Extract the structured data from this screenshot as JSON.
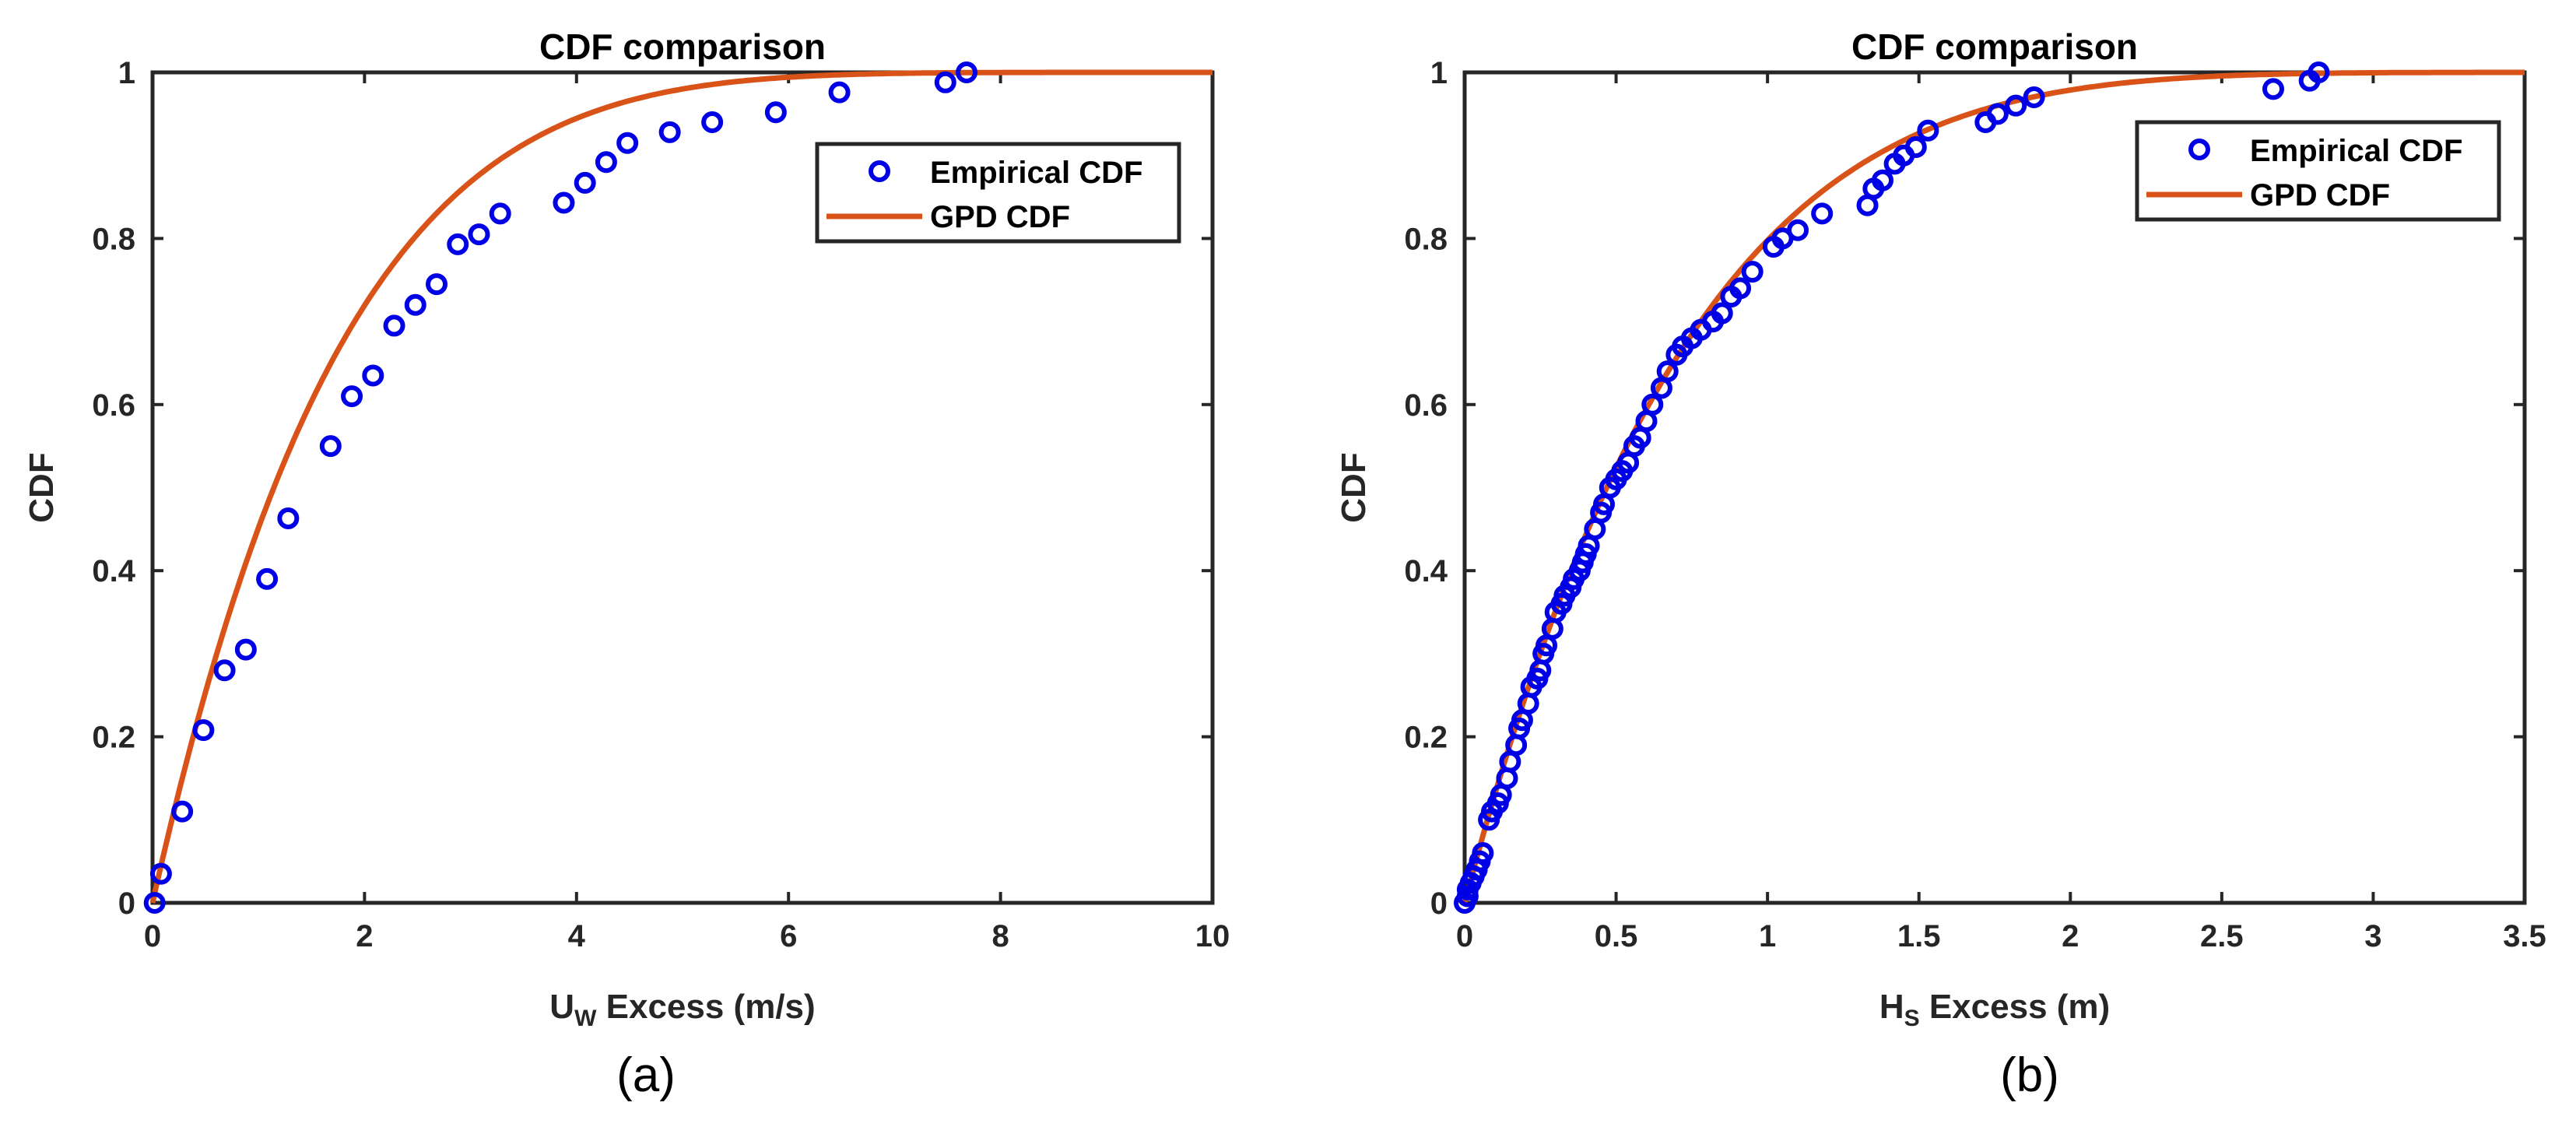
{
  "colors": {
    "empirical": "#0000e6",
    "gpd": "#d95319",
    "axis": "#262626"
  },
  "chart_data": [
    {
      "type": "line",
      "title": "CDF comparison",
      "xlabel_main": "U",
      "xlabel_sub": "W",
      "xlabel_rest": " Excess (m/s)",
      "ylabel": "CDF",
      "caption": "(a)",
      "xlim": [
        0,
        10
      ],
      "ylim": [
        0,
        1
      ],
      "xticks": [
        0,
        2,
        4,
        6,
        8,
        10
      ],
      "xtick_labels": [
        "0",
        "2",
        "4",
        "6",
        "8",
        "10"
      ],
      "yticks": [
        0,
        0.2,
        0.4,
        0.6,
        0.8,
        1
      ],
      "ytick_labels": [
        "0",
        "0.2",
        "0.4",
        "0.6",
        "0.8",
        "1"
      ],
      "legend": [
        "Empirical CDF",
        "GPD CDF"
      ],
      "legend_position": "top-right",
      "gpd": {
        "shape": -0.17,
        "scale": 1.75
      },
      "series": [
        {
          "name": "Empirical CDF",
          "style": "markers",
          "x": [
            0.02,
            0.08,
            0.28,
            0.48,
            0.68,
            0.88,
            1.08,
            1.28,
            1.68,
            1.88,
            2.08,
            2.28,
            2.48,
            2.68,
            2.88,
            3.08,
            3.28,
            3.88,
            4.08,
            4.28,
            4.48,
            4.88,
            5.28,
            5.88,
            6.48,
            7.48,
            7.68
          ],
          "y": [
            0.0,
            0.035,
            0.11,
            0.208,
            0.28,
            0.305,
            0.39,
            0.463,
            0.55,
            0.61,
            0.635,
            0.695,
            0.72,
            0.745,
            0.793,
            0.805,
            0.83,
            0.843,
            0.867,
            0.892,
            0.915,
            0.928,
            0.94,
            0.952,
            0.976,
            0.988,
            1.0
          ]
        },
        {
          "name": "GPD CDF",
          "style": "line",
          "x_range": [
            0,
            10
          ]
        }
      ]
    },
    {
      "type": "line",
      "title": "CDF comparison",
      "xlabel_main": "H",
      "xlabel_sub": "S",
      "xlabel_rest": " Excess (m)",
      "ylabel": "CDF",
      "caption": "(b)",
      "xlim": [
        0,
        3.5
      ],
      "ylim": [
        0,
        1
      ],
      "xticks": [
        0,
        0.5,
        1,
        1.5,
        2,
        2.5,
        3,
        3.5
      ],
      "xtick_labels": [
        "0",
        "0.5",
        "1",
        "1.5",
        "2",
        "2.5",
        "3",
        "3.5"
      ],
      "yticks": [
        0,
        0.2,
        0.4,
        0.6,
        0.8,
        1
      ],
      "ytick_labels": [
        "0",
        "0.2",
        "0.4",
        "0.6",
        "0.8",
        "1"
      ],
      "legend": [
        "Empirical CDF",
        "GPD CDF"
      ],
      "legend_position": "top-right",
      "gpd": {
        "shape": -0.18,
        "scale": 0.72
      },
      "series": [
        {
          "name": "Empirical CDF",
          "style": "markers",
          "x": [
            0.0,
            0.01,
            0.01,
            0.02,
            0.03,
            0.04,
            0.05,
            0.06,
            0.08,
            0.09,
            0.11,
            0.12,
            0.14,
            0.15,
            0.17,
            0.18,
            0.19,
            0.21,
            0.22,
            0.24,
            0.25,
            0.26,
            0.27,
            0.29,
            0.3,
            0.32,
            0.33,
            0.35,
            0.36,
            0.38,
            0.39,
            0.4,
            0.41,
            0.43,
            0.45,
            0.46,
            0.48,
            0.5,
            0.52,
            0.54,
            0.56,
            0.58,
            0.6,
            0.62,
            0.65,
            0.67,
            0.7,
            0.72,
            0.75,
            0.78,
            0.82,
            0.85,
            0.88,
            0.91,
            0.95,
            1.02,
            1.05,
            1.1,
            1.18,
            1.33,
            1.35,
            1.38,
            1.42,
            1.45,
            1.49,
            1.53,
            1.72,
            1.76,
            1.82,
            1.88,
            2.67,
            2.79,
            2.82
          ],
          "y": [
            0.0,
            0.008,
            0.016,
            0.024,
            0.032,
            0.04,
            0.05,
            0.06,
            0.1,
            0.11,
            0.12,
            0.13,
            0.15,
            0.17,
            0.19,
            0.21,
            0.22,
            0.24,
            0.26,
            0.27,
            0.28,
            0.3,
            0.31,
            0.33,
            0.35,
            0.36,
            0.37,
            0.38,
            0.39,
            0.4,
            0.41,
            0.42,
            0.43,
            0.45,
            0.47,
            0.48,
            0.5,
            0.51,
            0.52,
            0.53,
            0.55,
            0.56,
            0.58,
            0.6,
            0.62,
            0.64,
            0.66,
            0.67,
            0.68,
            0.69,
            0.7,
            0.71,
            0.73,
            0.74,
            0.76,
            0.79,
            0.8,
            0.81,
            0.83,
            0.84,
            0.86,
            0.87,
            0.89,
            0.9,
            0.91,
            0.93,
            0.94,
            0.95,
            0.96,
            0.97,
            0.98,
            0.99,
            1.0
          ]
        },
        {
          "name": "GPD CDF",
          "style": "line",
          "x_range": [
            0,
            3.5
          ]
        }
      ]
    }
  ]
}
